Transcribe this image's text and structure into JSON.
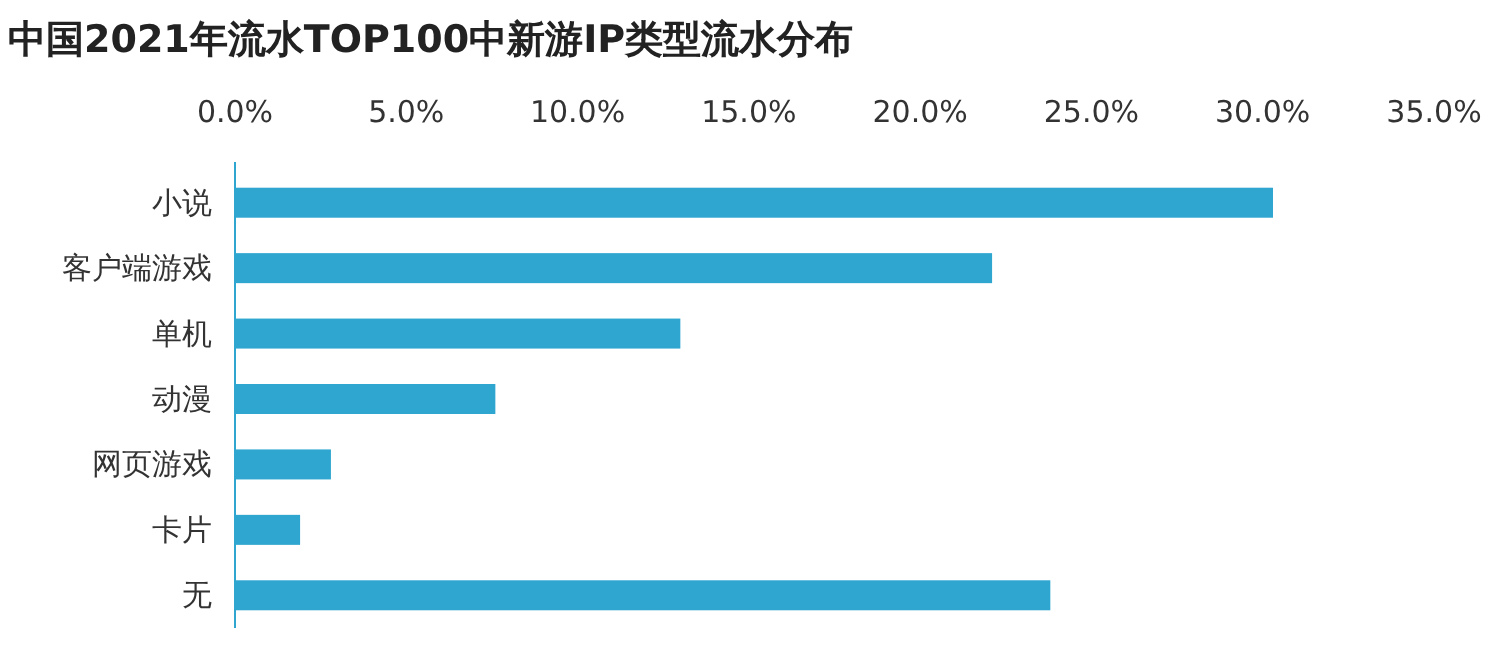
{
  "chart_data": {
    "type": "bar",
    "orientation": "horizontal",
    "title": "中国2021年流水TOP100中新游IP类型流水分布",
    "categories": [
      "小说",
      "客户端游戏",
      "单机",
      "动漫",
      "网页游戏",
      "卡片",
      "无"
    ],
    "values": [
      30.3,
      22.1,
      13.0,
      7.6,
      2.8,
      1.9,
      23.8
    ],
    "color": "#2ea6d0",
    "xlim": [
      0,
      35
    ],
    "xticks": [
      {
        "value": 0,
        "label": "0.0%"
      },
      {
        "value": 5,
        "label": "5.0%"
      },
      {
        "value": 10,
        "label": "10.0%"
      },
      {
        "value": 15,
        "label": "15.0%"
      },
      {
        "value": 20,
        "label": "20.0%"
      },
      {
        "value": 25,
        "label": "25.0%"
      },
      {
        "value": 30,
        "label": "30.0%"
      },
      {
        "value": 35,
        "label": "35.0%"
      }
    ],
    "grid": false,
    "legend": false
  }
}
